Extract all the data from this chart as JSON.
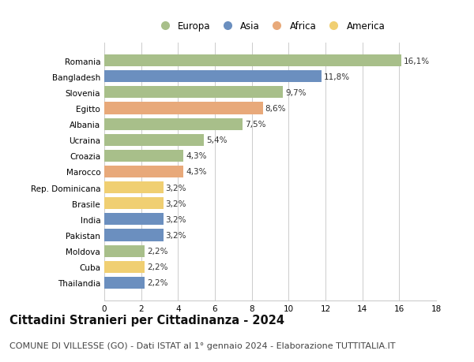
{
  "categories": [
    "Romania",
    "Bangladesh",
    "Slovenia",
    "Egitto",
    "Albania",
    "Ucraina",
    "Croazia",
    "Marocco",
    "Rep. Dominicana",
    "Brasile",
    "India",
    "Pakistan",
    "Moldova",
    "Cuba",
    "Thailandia"
  ],
  "values": [
    16.1,
    11.8,
    9.7,
    8.6,
    7.5,
    5.4,
    4.3,
    4.3,
    3.2,
    3.2,
    3.2,
    3.2,
    2.2,
    2.2,
    2.2
  ],
  "labels": [
    "16,1%",
    "11,8%",
    "9,7%",
    "8,6%",
    "7,5%",
    "5,4%",
    "4,3%",
    "4,3%",
    "3,2%",
    "3,2%",
    "3,2%",
    "3,2%",
    "2,2%",
    "2,2%",
    "2,2%"
  ],
  "continents": [
    "Europa",
    "Asia",
    "Europa",
    "Africa",
    "Europa",
    "Europa",
    "Europa",
    "Africa",
    "America",
    "America",
    "Asia",
    "Asia",
    "Europa",
    "America",
    "Asia"
  ],
  "continent_colors": {
    "Europa": "#a8bf8a",
    "Asia": "#6b8fbf",
    "Africa": "#e8a97a",
    "America": "#f0cf72"
  },
  "legend_order": [
    "Europa",
    "Asia",
    "Africa",
    "America"
  ],
  "title": "Cittadini Stranieri per Cittadinanza - 2024",
  "subtitle": "COMUNE DI VILLESSE (GO) - Dati ISTAT al 1° gennaio 2024 - Elaborazione TUTTITALIA.IT",
  "xlim": [
    0,
    18
  ],
  "xticks": [
    0,
    2,
    4,
    6,
    8,
    10,
    12,
    14,
    16,
    18
  ],
  "background_color": "#ffffff",
  "grid_color": "#cccccc",
  "bar_height": 0.75,
  "title_fontsize": 10.5,
  "subtitle_fontsize": 8,
  "label_fontsize": 7.5,
  "tick_fontsize": 7.5,
  "legend_fontsize": 8.5
}
